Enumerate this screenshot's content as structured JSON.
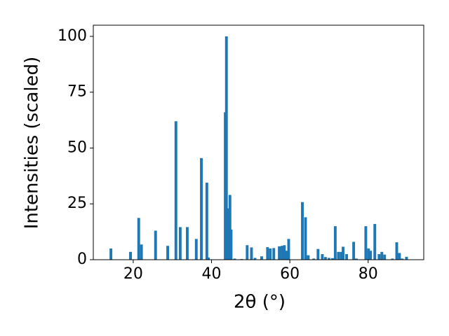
{
  "chart_data": {
    "type": "bar",
    "xlabel": "2θ (°)",
    "ylabel": "Intensities (scaled)",
    "x": [
      14.3,
      19.3,
      21.4,
      22.1,
      25.7,
      28.8,
      30.9,
      32.0,
      33.8,
      36.1,
      37.4,
      38.8,
      39.2,
      43.5,
      43.8,
      44.4,
      44.7,
      45.0,
      45.9,
      47.7,
      49.1,
      50.2,
      51.1,
      52.8,
      54.3,
      55.0,
      55.9,
      57.3,
      58.0,
      58.6,
      59.1,
      59.7,
      63.2,
      64.0,
      64.7,
      66.1,
      67.2,
      68.3,
      69.1,
      70.0,
      70.9,
      71.6,
      72.4,
      73.1,
      73.6,
      74.5,
      76.3,
      77.0,
      79.4,
      80.1,
      80.6,
      81.7,
      82.8,
      83.5,
      84.2,
      86.2,
      87.3,
      88.0,
      88.7,
      89.8
    ],
    "values": [
      5,
      3.5,
      18.7,
      6.8,
      13,
      6.2,
      62,
      14.6,
      14.6,
      9.3,
      45.5,
      34.5,
      1,
      66,
      100,
      23,
      29,
      13.5,
      0.5,
      0.3,
      6.5,
      5.5,
      0.8,
      1.5,
      5.6,
      5,
      5.2,
      6,
      6.2,
      6.5,
      4,
      9.3,
      25.8,
      19,
      2,
      0.5,
      4.8,
      2.5,
      1.2,
      0.8,
      0.7,
      15,
      3.5,
      3.5,
      5.8,
      2.5,
      8,
      0.5,
      15,
      5,
      4,
      16,
      2.5,
      3.5,
      2.3,
      0.5,
      7.8,
      3,
      0.5,
      1.3
    ],
    "color": "#1f77b4",
    "xlim": [
      9.8,
      94.2
    ],
    "xticks": [
      20,
      40,
      60,
      80
    ],
    "ylim": [
      0,
      105
    ],
    "yticks": [
      0,
      25,
      50,
      75,
      100
    ],
    "grid": false
  }
}
